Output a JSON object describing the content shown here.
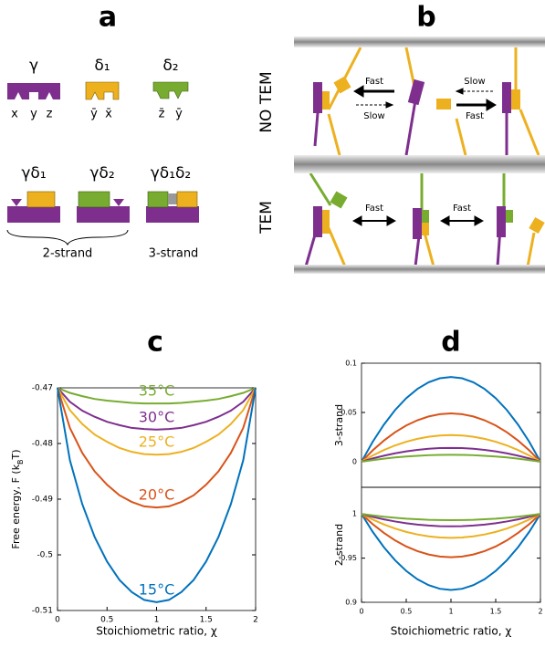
{
  "panel_a": {
    "label": "a",
    "strands": [
      {
        "name": "γ",
        "sites": [
          "x",
          "y",
          "z"
        ]
      },
      {
        "name": "δ₁",
        "sites": [
          "ȳ",
          "x̄"
        ]
      },
      {
        "name": "δ₂",
        "sites": [
          "z̄",
          "ȳ"
        ]
      }
    ],
    "complexes": [
      "γδ₁",
      "γδ₂",
      "γδ₁δ₂"
    ],
    "groups": [
      "2-strand",
      "3-strand"
    ]
  },
  "panel_b": {
    "label": "b",
    "rows": [
      "NO TEM",
      "TEM"
    ],
    "no_tem_rates": [
      "Fast",
      "Slow",
      "Slow",
      "Fast"
    ],
    "tem_rates": [
      "Fast",
      "Fast"
    ]
  },
  "chart_data": [
    {
      "type": "line",
      "label": "c",
      "ylabel": [
        "Free energy, F (k",
        "B",
        "T)"
      ],
      "xlabel": "Stoichiometric ratio, χ",
      "x": [
        0,
        0.125,
        0.25,
        0.375,
        0.5,
        0.625,
        0.75,
        0.875,
        1,
        1.125,
        1.25,
        1.375,
        1.5,
        1.625,
        1.75,
        1.875,
        2
      ],
      "xlim": [
        0,
        2
      ],
      "xticks": [
        0,
        0.5,
        1,
        1.5,
        2
      ],
      "ylim": [
        -0.51,
        -0.47
      ],
      "yticks": [
        -0.51,
        -0.5,
        -0.49,
        -0.48,
        -0.47
      ],
      "series": [
        {
          "name": "35°C",
          "color": "#77ac30",
          "values": [
            -0.47,
            -0.4709,
            -0.4715,
            -0.472,
            -0.4723,
            -0.4725,
            -0.4727,
            -0.4728,
            -0.4728,
            -0.4728,
            -0.4727,
            -0.4725,
            -0.4723,
            -0.472,
            -0.4715,
            -0.4709,
            -0.47
          ]
        },
        {
          "name": "30°C",
          "color": "#7e2f8e",
          "values": [
            -0.47,
            -0.4725,
            -0.4741,
            -0.4752,
            -0.4761,
            -0.4767,
            -0.4772,
            -0.4774,
            -0.4775,
            -0.4774,
            -0.4772,
            -0.4767,
            -0.4761,
            -0.4752,
            -0.4741,
            -0.4725,
            -0.47
          ]
        },
        {
          "name": "25°C",
          "color": "#edb120",
          "values": [
            -0.47,
            -0.474,
            -0.4765,
            -0.4784,
            -0.4797,
            -0.4808,
            -0.4815,
            -0.4819,
            -0.482,
            -0.4819,
            -0.4815,
            -0.4808,
            -0.4797,
            -0.4784,
            -0.4765,
            -0.474,
            -0.47
          ]
        },
        {
          "name": "20°C",
          "color": "#d95319",
          "values": [
            -0.47,
            -0.4772,
            -0.4817,
            -0.485,
            -0.4874,
            -0.4893,
            -0.4905,
            -0.4913,
            -0.4915,
            -0.4913,
            -0.4905,
            -0.4893,
            -0.4874,
            -0.485,
            -0.4817,
            -0.4772,
            -0.47
          ]
        },
        {
          "name": "15°C",
          "color": "#0072bd",
          "values": [
            -0.47,
            -0.483,
            -0.4909,
            -0.4968,
            -0.5012,
            -0.5045,
            -0.5067,
            -0.5081,
            -0.5085,
            -0.5081,
            -0.5067,
            -0.5045,
            -0.5012,
            -0.4968,
            -0.4909,
            -0.483,
            -0.47
          ]
        }
      ]
    },
    {
      "type": "line",
      "label": "d",
      "ylabel": "3-strand",
      "x": [
        0,
        0.125,
        0.25,
        0.375,
        0.5,
        0.625,
        0.75,
        0.875,
        1,
        1.125,
        1.25,
        1.375,
        1.5,
        1.625,
        1.75,
        1.875,
        2
      ],
      "xlim": [
        0,
        2
      ],
      "ylim": [
        -0.026,
        0.1
      ],
      "yticks": [
        0,
        0.05,
        0.1
      ],
      "series": [
        {
          "color": "#0072bd",
          "values": [
            0,
            0.0202,
            0.0376,
            0.0524,
            0.0645,
            0.0739,
            0.0806,
            0.0847,
            0.086,
            0.0847,
            0.0806,
            0.0739,
            0.0645,
            0.0524,
            0.0376,
            0.0202,
            0
          ]
        },
        {
          "color": "#d95319",
          "values": [
            0,
            0.0115,
            0.0214,
            0.0299,
            0.0368,
            0.0421,
            0.0459,
            0.0482,
            0.049,
            0.0482,
            0.0459,
            0.0421,
            0.0368,
            0.0299,
            0.0214,
            0.0115,
            0
          ]
        },
        {
          "color": "#edb120",
          "values": [
            0,
            0.0063,
            0.0118,
            0.0165,
            0.0203,
            0.0232,
            0.0253,
            0.0266,
            0.027,
            0.0266,
            0.0253,
            0.0232,
            0.0203,
            0.0165,
            0.0118,
            0.0063,
            0
          ]
        },
        {
          "color": "#7e2f8e",
          "values": [
            0,
            0.0033,
            0.0061,
            0.0085,
            0.0105,
            0.012,
            0.0131,
            0.0138,
            0.014,
            0.0138,
            0.0131,
            0.012,
            0.0105,
            0.0085,
            0.0061,
            0.0033,
            0
          ]
        },
        {
          "color": "#77ac30",
          "values": [
            0,
            0.0016,
            0.0031,
            0.0043,
            0.0053,
            0.006,
            0.0066,
            0.0069,
            0.007,
            0.0069,
            0.0066,
            0.006,
            0.0053,
            0.0043,
            0.0031,
            0.0016,
            0
          ]
        }
      ]
    },
    {
      "type": "line",
      "ylabel": "2-strand",
      "xlabel": "Stoichiometric ratio, χ",
      "x": [
        0,
        0.125,
        0.25,
        0.375,
        0.5,
        0.625,
        0.75,
        0.875,
        1,
        1.125,
        1.25,
        1.375,
        1.5,
        1.625,
        1.75,
        1.875,
        2
      ],
      "xlim": [
        0,
        2
      ],
      "xticks": [
        0,
        0.5,
        1,
        1.5,
        2
      ],
      "ylim": [
        0.9,
        1.0302
      ],
      "yticks": [
        0.9,
        0.95,
        1
      ],
      "series": [
        {
          "color": "#0072bd",
          "values": [
            1,
            0.9798,
            0.9624,
            0.9476,
            0.9355,
            0.9261,
            0.9194,
            0.9153,
            0.914,
            0.9153,
            0.9194,
            0.9261,
            0.9355,
            0.9476,
            0.9624,
            0.9798,
            1
          ]
        },
        {
          "color": "#d95319",
          "values": [
            1,
            0.9885,
            0.9786,
            0.9701,
            0.9632,
            0.9579,
            0.9541,
            0.9518,
            0.951,
            0.9518,
            0.9541,
            0.9579,
            0.9632,
            0.9701,
            0.9786,
            0.9885,
            1
          ]
        },
        {
          "color": "#edb120",
          "values": [
            1,
            0.9937,
            0.9882,
            0.9835,
            0.9797,
            0.9768,
            0.9747,
            0.9734,
            0.973,
            0.9734,
            0.9747,
            0.9768,
            0.9797,
            0.9835,
            0.9882,
            0.9937,
            1
          ]
        },
        {
          "color": "#7e2f8e",
          "values": [
            1,
            0.9967,
            0.9939,
            0.9915,
            0.9895,
            0.988,
            0.9869,
            0.9862,
            0.986,
            0.9862,
            0.9869,
            0.988,
            0.9895,
            0.9915,
            0.9939,
            0.9967,
            1
          ]
        },
        {
          "color": "#77ac30",
          "values": [
            1,
            0.9984,
            0.9969,
            0.9957,
            0.9947,
            0.994,
            0.9934,
            0.9931,
            0.993,
            0.9931,
            0.9934,
            0.994,
            0.9947,
            0.9957,
            0.9969,
            0.9984,
            1
          ]
        }
      ]
    }
  ]
}
